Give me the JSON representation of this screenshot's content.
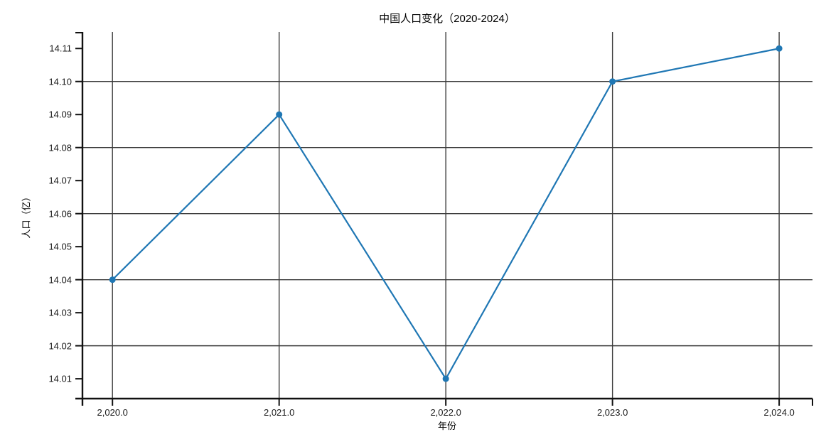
{
  "page": {
    "background": "#ffffff"
  },
  "chart_data": {
    "type": "line",
    "title": "中国人口变化（2020-2024）",
    "xlabel": "年份",
    "ylabel": "人口（亿）",
    "x": [
      2020,
      2021,
      2022,
      2023,
      2024
    ],
    "series": [
      {
        "name": "人口",
        "values": [
          14.04,
          14.09,
          14.01,
          14.1,
          14.11
        ]
      }
    ],
    "x_tick_labels": [
      "2,020.0",
      "2,021.0",
      "2,022.0",
      "2,023.0",
      "2,024.0"
    ],
    "y_ticks": [
      14.01,
      14.02,
      14.03,
      14.04,
      14.05,
      14.06,
      14.07,
      14.08,
      14.09,
      14.1,
      14.11
    ],
    "y_tick_labels": [
      "14.01",
      "14.02",
      "14.03",
      "14.04",
      "14.05",
      "14.06",
      "14.07",
      "14.08",
      "14.09",
      "14.10",
      "14.11"
    ],
    "y_gridlines": [
      14.02,
      14.04,
      14.06,
      14.08,
      14.1
    ],
    "xlim": [
      2019.82,
      2024.2
    ],
    "ylim": [
      14.004,
      14.115
    ],
    "grid": "on",
    "legend": "none",
    "line_color": "#1f77b4",
    "marker": "circle",
    "grid_color": "#3b3b3b",
    "axis_color": "#111111"
  }
}
